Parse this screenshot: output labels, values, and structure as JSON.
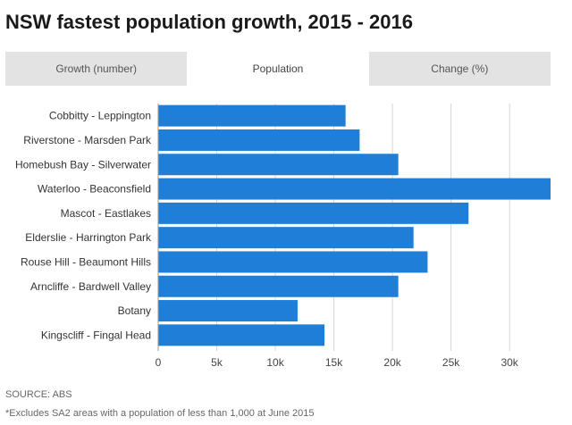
{
  "title": "NSW fastest population growth, 2015 - 2016",
  "tabs": [
    {
      "label": "Growth (number)",
      "active": false
    },
    {
      "label": "Population",
      "active": true
    },
    {
      "label": "Change (%)",
      "active": false
    }
  ],
  "colors": {
    "bar": "#1f7fd8",
    "grid": "#d6d6d6",
    "tab_bg": "#e3e3e3"
  },
  "chart_data": {
    "type": "bar",
    "orientation": "horizontal",
    "title": "NSW fastest population growth, 2015 - 2016",
    "xlabel": "",
    "ylabel": "",
    "categories": [
      "Cobbitty - Leppington",
      "Riverstone - Marsden Park",
      "Homebush Bay - Silverwater",
      "Waterloo - Beaconsfield",
      "Mascot - Eastlakes",
      "Elderslie - Harrington Park",
      "Rouse Hill - Beaumont Hills",
      "Arncliffe - Bardwell Valley",
      "Botany",
      "Kingscliff - Fingal Head"
    ],
    "values": [
      16000,
      17200,
      20500,
      33500,
      26500,
      21800,
      23000,
      20500,
      11900,
      14200
    ],
    "xlim": [
      0,
      33500
    ],
    "xticks": [
      0,
      5000,
      10000,
      15000,
      20000,
      25000,
      30000
    ],
    "xtick_labels": [
      "0",
      "5k",
      "10k",
      "15k",
      "20k",
      "25k",
      "30k"
    ],
    "grid": true
  },
  "footer": {
    "source": "SOURCE: ABS",
    "note": "*Excludes SA2 areas with a population of less than 1,000 at June 2015"
  }
}
